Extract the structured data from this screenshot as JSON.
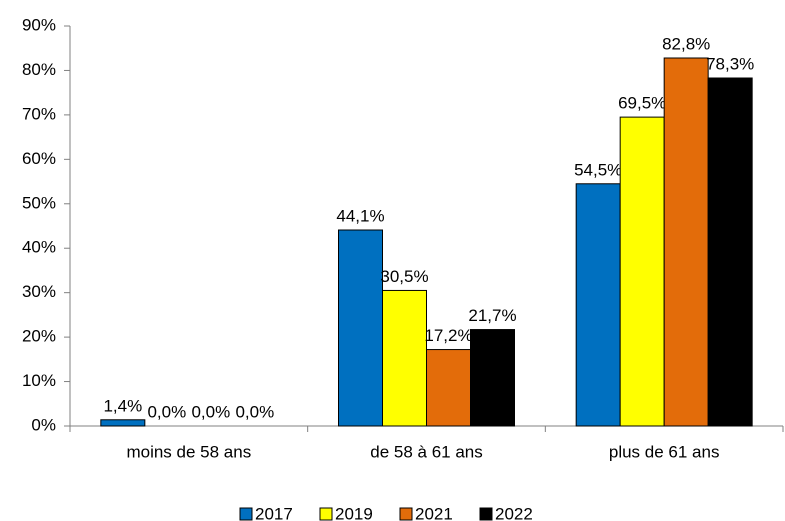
{
  "chart_data": {
    "type": "bar",
    "categories": [
      "moins de 58 ans",
      "de 58 à 61 ans",
      "plus de 61 ans"
    ],
    "series": [
      {
        "name": "2017",
        "color": "#0070c0",
        "values": [
          1.4,
          44.1,
          54.5
        ],
        "value_labels": [
          "1,4%",
          "44,1%",
          "54,5%"
        ]
      },
      {
        "name": "2019",
        "color": "#ffff00",
        "values": [
          0,
          30.5,
          69.5
        ],
        "value_labels": [
          "0,0%",
          "30,5%",
          "69,5%"
        ]
      },
      {
        "name": "2021",
        "color": "#e36c0a",
        "values": [
          0,
          17.2,
          82.8
        ],
        "value_labels": [
          "0,0%",
          "17,2%",
          "82,8%"
        ]
      },
      {
        "name": "2022",
        "color": "#000000",
        "values": [
          0,
          21.7,
          78.3
        ],
        "value_labels": [
          "0,0%",
          "21,7%",
          "78,3%"
        ]
      }
    ],
    "ylim": [
      0,
      90
    ],
    "yticks": [
      {
        "value": 0,
        "label": "0%"
      },
      {
        "value": 10,
        "label": "10%"
      },
      {
        "value": 20,
        "label": "20%"
      },
      {
        "value": 30,
        "label": "30%"
      },
      {
        "value": 40,
        "label": "40%"
      },
      {
        "value": 50,
        "label": "50%"
      },
      {
        "value": 60,
        "label": "60%"
      },
      {
        "value": 70,
        "label": "70%"
      },
      {
        "value": 80,
        "label": "80%"
      },
      {
        "value": 90,
        "label": "90%"
      }
    ],
    "legend": "bottom"
  }
}
